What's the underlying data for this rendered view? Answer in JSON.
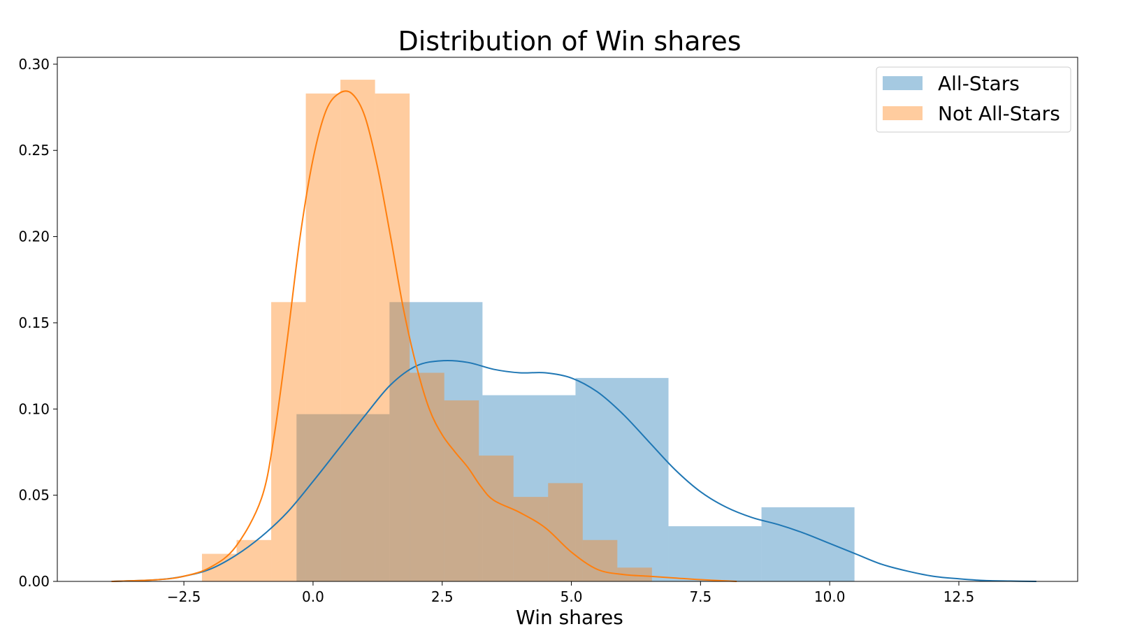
{
  "chart_data": {
    "type": "bar",
    "title": "Distribution of Win shares",
    "xlabel": "Win shares",
    "ylabel": "",
    "xlim": [
      -4.95,
      14.8
    ],
    "ylim": [
      0,
      0.304
    ],
    "xticks": [
      -2.5,
      0.0,
      2.5,
      5.0,
      7.5,
      10.0,
      12.5
    ],
    "xtick_labels": [
      "−2.5",
      "0.0",
      "2.5",
      "5.0",
      "7.5",
      "10.0",
      "12.5"
    ],
    "yticks": [
      0.0,
      0.05,
      0.1,
      0.15,
      0.2,
      0.25,
      0.3
    ],
    "ytick_labels": [
      "0.00",
      "0.05",
      "0.10",
      "0.15",
      "0.20",
      "0.25",
      "0.30"
    ],
    "grid": false,
    "legend_position": "top-right",
    "series": [
      {
        "name": "All-Stars",
        "color": "#1f77b4",
        "hist": {
          "edges": [
            -0.32,
            1.48,
            3.28,
            5.08,
            6.88,
            8.68,
            10.48
          ],
          "values": [
            0.097,
            0.162,
            0.108,
            0.118,
            0.032,
            0.043
          ]
        },
        "kde": {
          "x": [
            -3.9,
            -3.0,
            -2.5,
            -2.0,
            -1.5,
            -1.0,
            -0.5,
            0.0,
            0.5,
            1.0,
            1.5,
            2.0,
            2.5,
            3.0,
            3.5,
            4.0,
            4.5,
            5.0,
            5.5,
            6.0,
            6.5,
            7.0,
            7.5,
            8.0,
            8.5,
            9.0,
            9.5,
            10.0,
            10.5,
            11.0,
            11.5,
            12.0,
            12.5,
            13.0,
            13.5,
            14.0
          ],
          "y": [
            0.0,
            0.001,
            0.003,
            0.007,
            0.015,
            0.026,
            0.04,
            0.058,
            0.077,
            0.096,
            0.114,
            0.125,
            0.128,
            0.127,
            0.123,
            0.121,
            0.121,
            0.118,
            0.11,
            0.097,
            0.081,
            0.065,
            0.052,
            0.043,
            0.037,
            0.033,
            0.028,
            0.022,
            0.016,
            0.01,
            0.006,
            0.003,
            0.0015,
            0.0005,
            0.0002,
            0.0
          ]
        }
      },
      {
        "name": "Not All-Stars",
        "color": "#ff7f0e",
        "hist": {
          "edges": [
            -2.15,
            -1.48,
            -0.81,
            -0.14,
            0.53,
            1.2,
            1.87,
            2.54,
            3.21,
            3.88,
            4.55,
            5.22,
            5.89,
            6.56
          ],
          "values": [
            0.016,
            0.024,
            0.162,
            0.283,
            0.291,
            0.283,
            0.121,
            0.105,
            0.073,
            0.049,
            0.057,
            0.024,
            0.008
          ]
        },
        "kde": {
          "x": [
            -3.9,
            -3.0,
            -2.5,
            -2.0,
            -1.5,
            -1.0,
            -0.75,
            -0.5,
            -0.25,
            0.0,
            0.25,
            0.5,
            0.75,
            1.0,
            1.25,
            1.5,
            1.75,
            2.0,
            2.25,
            2.5,
            2.75,
            3.0,
            3.25,
            3.5,
            4.0,
            4.5,
            5.0,
            5.5,
            6.0,
            6.5,
            7.0,
            7.5,
            8.2
          ],
          "y": [
            0.0,
            0.001,
            0.003,
            0.008,
            0.02,
            0.048,
            0.085,
            0.14,
            0.2,
            0.245,
            0.273,
            0.283,
            0.283,
            0.27,
            0.24,
            0.2,
            0.158,
            0.125,
            0.1,
            0.085,
            0.075,
            0.066,
            0.055,
            0.047,
            0.04,
            0.031,
            0.017,
            0.007,
            0.004,
            0.003,
            0.002,
            0.001,
            0.0
          ]
        }
      }
    ]
  }
}
